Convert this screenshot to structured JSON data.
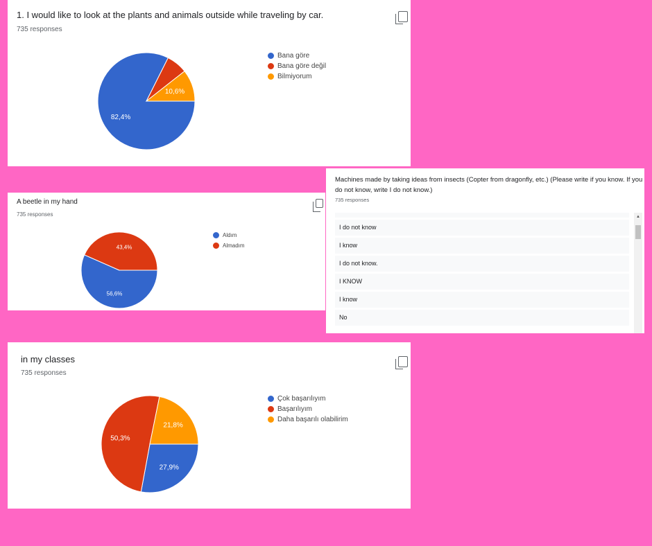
{
  "chart_data": [
    {
      "type": "pie",
      "title": "1. I would like to look at the plants and animals outside while traveling by car.",
      "subtitle": "735 responses",
      "slices": [
        {
          "label": "Bana göre",
          "value": 82.4,
          "data_label": "82,4%",
          "color": "#3366cc"
        },
        {
          "label": "Bana göre değil",
          "value": 7.0,
          "data_label": "",
          "color": "#dc3912"
        },
        {
          "label": "Bilmiyorum",
          "value": 10.6,
          "data_label": "10,6%",
          "color": "#ff9900"
        }
      ]
    },
    {
      "type": "pie",
      "title": "A beetle in my hand",
      "subtitle": "735 responses",
      "slices": [
        {
          "label": "Aldım",
          "value": 56.6,
          "data_label": "56,6%",
          "color": "#3366cc"
        },
        {
          "label": "Almadım",
          "value": 43.4,
          "data_label": "43,4%",
          "color": "#dc3912"
        }
      ]
    },
    {
      "type": "pie",
      "title": "in my classes",
      "subtitle": "735 responses",
      "slices": [
        {
          "label": "Çok başarılıyım",
          "value": 27.9,
          "data_label": "27,9%",
          "color": "#3366cc"
        },
        {
          "label": "Başarılıyım",
          "value": 50.3,
          "data_label": "50,3%",
          "color": "#dc3912"
        },
        {
          "label": "Daha başarılı olabilirim",
          "value": 21.8,
          "data_label": "21,8%",
          "color": "#ff9900"
        }
      ]
    }
  ],
  "text_question": {
    "title": "Machines made by taking ideas from insects (Copter from dragonfly, etc.) (Please write if you know. If you do not know, write I do not know.)",
    "subtitle": "735 responses",
    "responses": [
      "I know",
      "I do not know",
      "I know",
      "I do not know.",
      "I KNOW",
      "I know",
      "No"
    ]
  }
}
